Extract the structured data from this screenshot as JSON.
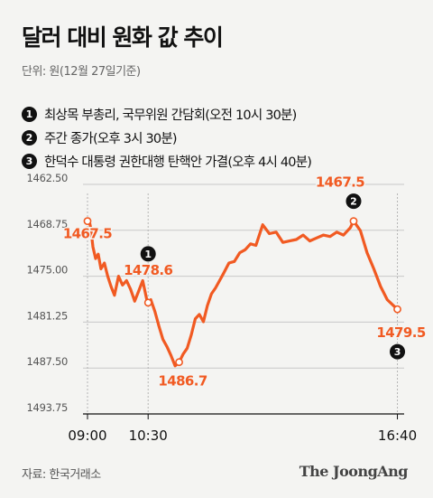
{
  "title": "달러 대비 원화 값 추이",
  "unit": "단위: 원(12월 27일기준)",
  "events": [
    {
      "num": "1",
      "text": "최상목 부총리, 국무위원 간담회(오전 10시 30분)"
    },
    {
      "num": "2",
      "text": "주간 종가(오후 3시 30분)"
    },
    {
      "num": "3",
      "text": "한덕수 대통령 권한대행 탄핵안 가결(오후 4시 40분)"
    }
  ],
  "colors": {
    "line": "#f15a22",
    "grid": "#c8c8c8",
    "text": "#111111"
  },
  "chart_data": {
    "type": "line",
    "title": "",
    "xlabel": "",
    "ylabel": "",
    "y_inverted": true,
    "ylim": [
      1462.5,
      1493.75
    ],
    "yticks": [
      "1462.50",
      "1468.75",
      "1475.00",
      "1481.25",
      "1487.50",
      "1493.75"
    ],
    "xticks": [
      "09:00",
      "10:30",
      "16:40"
    ],
    "xlim": [
      "09:00",
      "16:50"
    ],
    "grid": true,
    "series": [
      {
        "x": [
          "09:00",
          "09:02",
          "09:05",
          "09:08",
          "09:12",
          "09:16",
          "09:20",
          "09:25",
          "09:30",
          "09:35",
          "09:40",
          "09:46",
          "09:52",
          "09:58",
          "10:04",
          "10:10",
          "10:16",
          "10:22",
          "10:28",
          "10:30",
          "10:34",
          "10:40",
          "10:46",
          "10:52",
          "10:58",
          "11:04",
          "11:10",
          "11:16",
          "11:22",
          "11:28",
          "11:34",
          "11:40",
          "11:46",
          "11:52",
          "11:58",
          "12:04",
          "12:10",
          "12:16",
          "12:22",
          "12:30",
          "12:38",
          "12:46",
          "12:54",
          "13:02",
          "13:10",
          "13:20",
          "13:30",
          "13:40",
          "13:50",
          "14:00",
          "14:10",
          "14:20",
          "14:30",
          "14:40",
          "14:50",
          "15:00",
          "15:10",
          "15:20",
          "15:30",
          "15:35",
          "15:45",
          "15:55",
          "16:05",
          "16:15",
          "16:25",
          "16:40"
        ],
        "y": [
          1467.5,
          1467.2,
          1468.5,
          1471.0,
          1472.6,
          1472.0,
          1474.0,
          1473.2,
          1475.0,
          1476.4,
          1477.6,
          1475.0,
          1476.2,
          1475.6,
          1476.8,
          1478.4,
          1477.0,
          1475.6,
          1478.2,
          1478.6,
          1478.2,
          1479.8,
          1481.8,
          1483.6,
          1484.6,
          1485.8,
          1487.2,
          1486.7,
          1485.6,
          1484.8,
          1483.0,
          1480.8,
          1480.2,
          1481.2,
          1479.0,
          1477.4,
          1476.6,
          1475.6,
          1474.6,
          1473.2,
          1473.0,
          1471.8,
          1471.4,
          1470.6,
          1470.8,
          1468.0,
          1469.2,
          1469.0,
          1470.4,
          1470.2,
          1470.0,
          1469.4,
          1470.2,
          1469.8,
          1469.4,
          1469.6,
          1469.0,
          1469.4,
          1468.4,
          1467.5,
          1468.8,
          1471.8,
          1474.0,
          1476.4,
          1478.2,
          1479.5
        ]
      }
    ],
    "annotations": [
      {
        "x": "09:00",
        "y": 1467.5,
        "label": "1467.5"
      },
      {
        "x": "10:30",
        "y": 1478.6,
        "label": "1478.6",
        "marker": "1"
      },
      {
        "x": "11:16",
        "y": 1486.7,
        "label": "1486.7"
      },
      {
        "x": "15:35",
        "y": 1467.5,
        "label": "1467.5",
        "marker": "2"
      },
      {
        "x": "16:40",
        "y": 1479.5,
        "label": "1479.5",
        "marker": "3"
      }
    ]
  },
  "source": "자료: 한국거래소",
  "brand": "The JoongAng"
}
